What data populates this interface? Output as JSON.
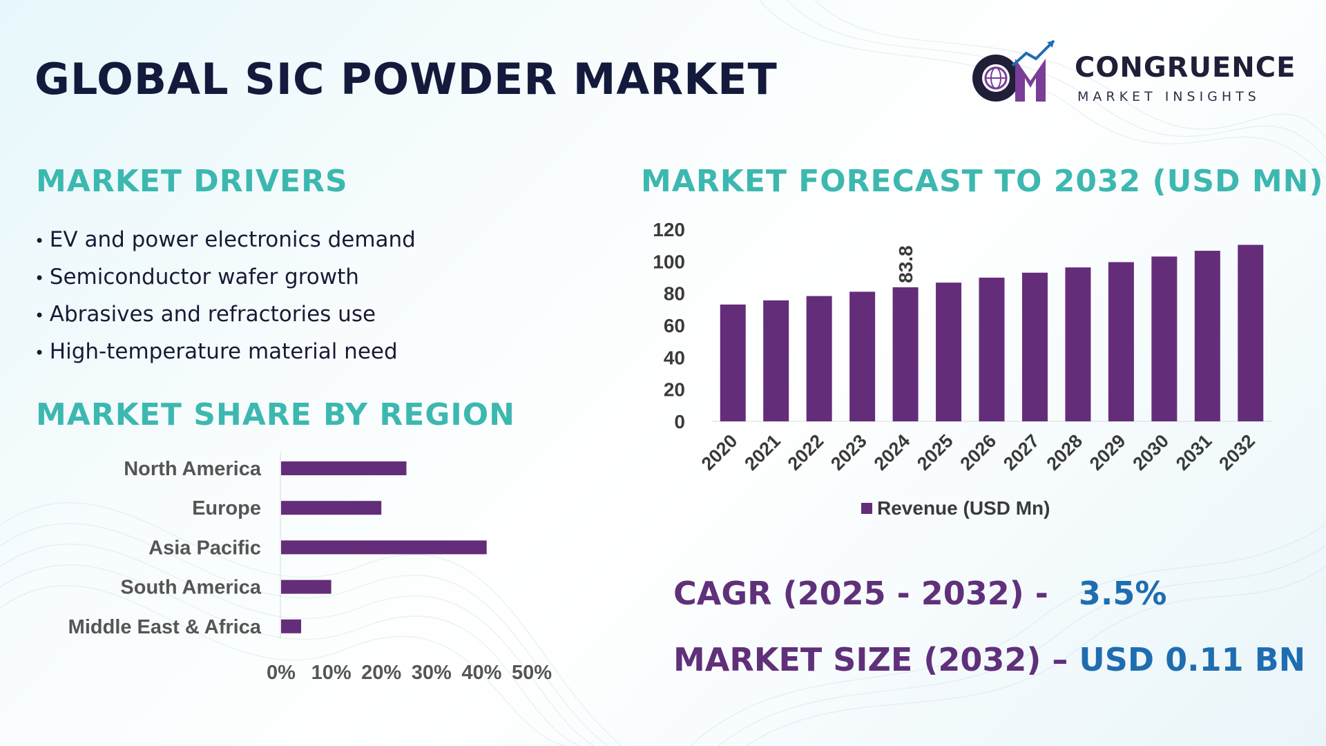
{
  "title": "GLOBAL SIC POWDER MARKET",
  "logo": {
    "name": "CONGRUENCE",
    "tagline": "MARKET INSIGHTS",
    "icon": "cm-globe-chart-logo"
  },
  "drivers": {
    "title": "MARKET DRIVERS",
    "items": [
      "EV and power electronics demand",
      "Semiconductor wafer growth",
      "Abrasives and refractories use",
      "High-temperature material need"
    ]
  },
  "region_title": "MARKET SHARE BY REGION",
  "forecast_title": "MARKET FORECAST TO 2032 (USD MN)",
  "stats": {
    "cagr_label": "CAGR (2025 - 2032) -",
    "cagr_value": "3.5%",
    "size_label": "MARKET SIZE (2032) –",
    "size_value": "USD 0.11 BN"
  },
  "colors": {
    "bar": "#642d7a",
    "heading": "#3cb8b0",
    "title": "#141a3c",
    "stat_label": "#60307a",
    "stat_value": "#1f6db0"
  },
  "chart_data": [
    {
      "type": "bar",
      "orientation": "vertical",
      "categories": [
        "2020",
        "2021",
        "2022",
        "2023",
        "2024",
        "2025",
        "2026",
        "2027",
        "2028",
        "2029",
        "2030",
        "2031",
        "2032"
      ],
      "series": [
        {
          "name": "Revenue (USD Mn)",
          "values": [
            73,
            75.6,
            78.3,
            81,
            83.8,
            86.7,
            89.8,
            92.9,
            96.2,
            99.5,
            103,
            106.6,
            110.3
          ]
        }
      ],
      "data_labels": {
        "2024": "83.8"
      },
      "ylim": [
        0,
        120
      ],
      "yticks": [
        0,
        20,
        40,
        60,
        80,
        100,
        120
      ],
      "legend": "bottom",
      "grid": false
    },
    {
      "type": "bar",
      "orientation": "horizontal",
      "categories": [
        "North America",
        "Europe",
        "Asia Pacific",
        "South America",
        "Middle East & Africa"
      ],
      "values": [
        25,
        20,
        41,
        10,
        4
      ],
      "xlim": [
        0,
        50
      ],
      "xticks": [
        "0%",
        "10%",
        "20%",
        "30%",
        "40%",
        "50%"
      ],
      "grid": false
    }
  ]
}
